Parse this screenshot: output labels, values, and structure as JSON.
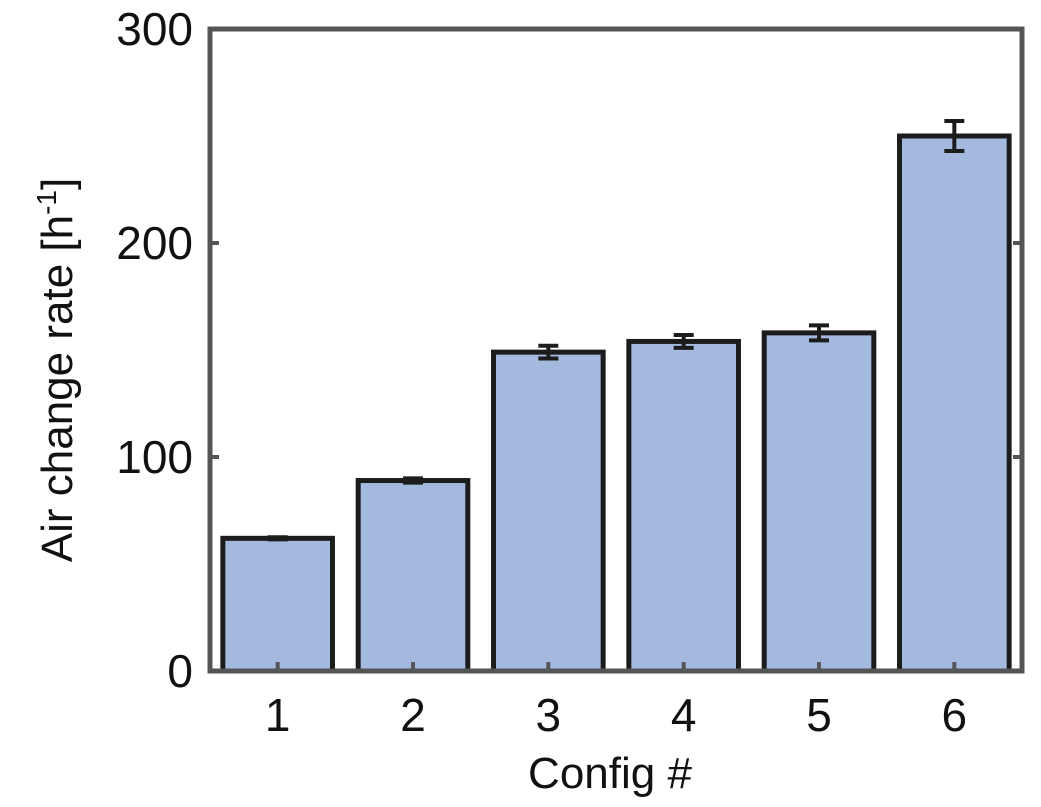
{
  "chart_data": {
    "type": "bar",
    "categories": [
      "1",
      "2",
      "3",
      "4",
      "5",
      "6"
    ],
    "values": [
      62,
      89,
      149,
      154,
      158,
      250
    ],
    "errors": [
      0.5,
      1,
      3,
      3,
      3.5,
      7
    ],
    "xlabel": "Config #",
    "ylabel_main": "Air change rate [h",
    "ylabel_sup": "-1",
    "ylabel_end": "]",
    "ylim": [
      0,
      300
    ],
    "yticks": [
      0,
      100,
      200,
      300
    ],
    "grid": false,
    "colors": {
      "bar_fill": "#a3b9de",
      "bar_edge": "#1c1c1c",
      "axis": "#555555",
      "error_bar": "#1c1c1c"
    }
  }
}
